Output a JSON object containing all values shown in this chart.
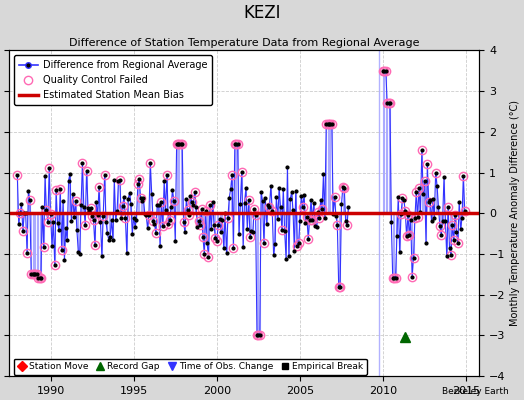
{
  "title": "KEZI",
  "subtitle": "Difference of Station Temperature Data from Regional Average",
  "ylabel": "Monthly Temperature Anomaly Difference (°C)",
  "xlim": [
    1987.5,
    2015.8
  ],
  "ylim": [
    -4,
    4
  ],
  "yticks": [
    -4,
    -3,
    -2,
    -1,
    0,
    1,
    2,
    3,
    4
  ],
  "xticks": [
    1990,
    1995,
    2000,
    2005,
    2010,
    2015
  ],
  "mean_bias": 0.0,
  "background_color": "#d8d8d8",
  "plot_bg_color": "#ffffff",
  "line_color": "#3333ff",
  "stem_color": "#aaaaff",
  "marker_color": "#000000",
  "bias_color": "#cc0000",
  "qc_color": "#ff69b4",
  "vline_color": "#aaaaff",
  "record_gap_x": 2011.3,
  "record_gap_y": -3.05,
  "vline_x": 2009.75,
  "watermark": "Berkeley Earth",
  "seed": 7
}
